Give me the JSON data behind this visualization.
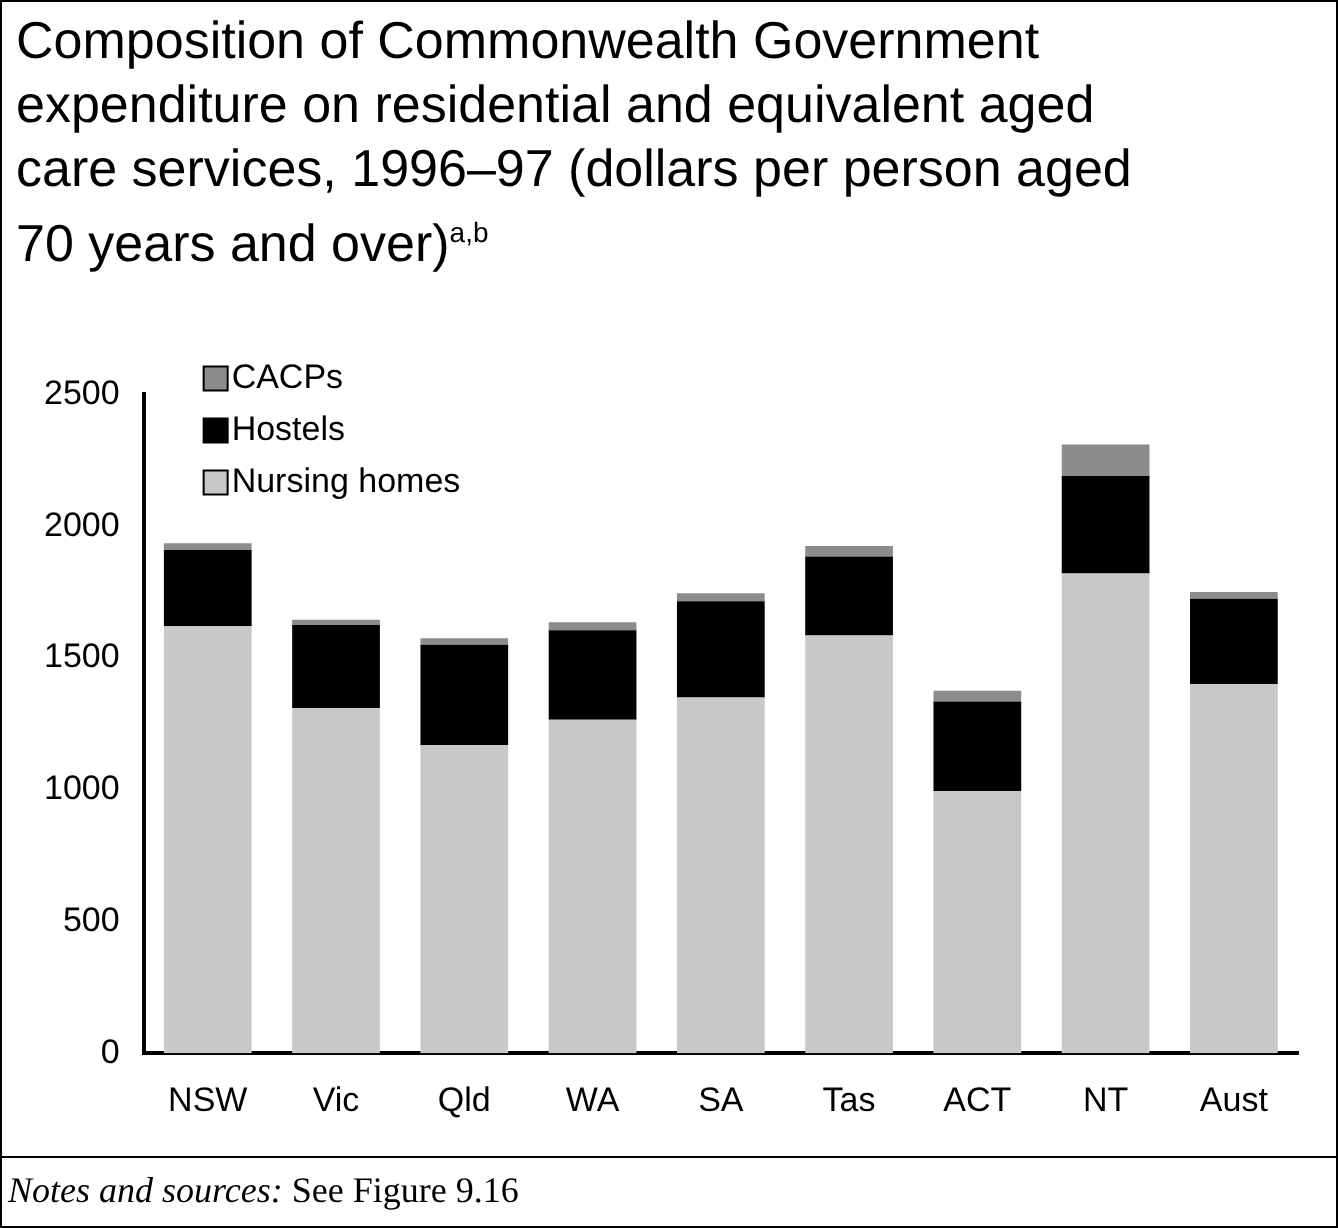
{
  "chart_data": {
    "type": "bar",
    "title": "Composition of Commonwealth Government expenditure on residential and equivalent aged care services, 1996–97 (dollars per person aged 70 years and over)$^{a,b}$",
    "categories": [
      "NSW",
      "Vic",
      "Qld",
      "WA",
      "SA",
      "Tas",
      "ACT",
      "NT",
      "Aust"
    ],
    "stacked": true,
    "series": [
      {
        "name": "Nursing homes",
        "color": "#c8c8c8",
        "values": [
          1620,
          1310,
          1170,
          1265,
          1350,
          1585,
          995,
          1820,
          1400
        ]
      },
      {
        "name": "Hostels",
        "color": "#000000",
        "values": [
          290,
          315,
          380,
          340,
          365,
          300,
          340,
          370,
          325
        ]
      },
      {
        "name": "CACPs",
        "color": "#8c8c8c",
        "values": [
          25,
          20,
          25,
          30,
          30,
          40,
          40,
          120,
          25
        ]
      }
    ],
    "ylim": [
      0,
      2500
    ],
    "yticks": [
      0,
      500,
      1000,
      1500,
      2000,
      2500
    ],
    "grid": false,
    "legend": "top left",
    "annotations": [
      "Notes and sources:  See Figure 9.16"
    ]
  }
}
